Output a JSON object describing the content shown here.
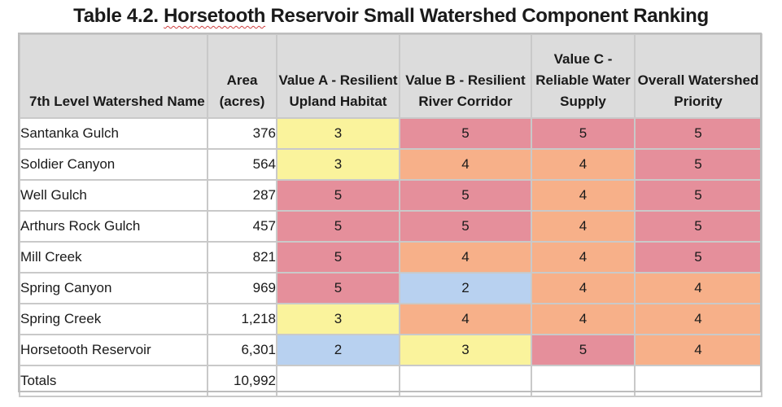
{
  "caption": {
    "prefix": "Table 4.2. ",
    "underlined": "Horsetooth",
    "suffix": " Reservoir Small Watershed Component Ranking"
  },
  "columns": [
    "7th Level Watershed Name",
    "Area (acres)",
    "Value A - Resilient Upland Habitat",
    "Value B - Resilient River Corridor",
    "Value C - Reliable Water Supply",
    "Overall Watershed Priority"
  ],
  "rows": [
    {
      "name": "Santanka Gulch",
      "area": "376",
      "a": "3",
      "b": "5",
      "c": "5",
      "overall": "5"
    },
    {
      "name": "Soldier Canyon",
      "area": "564",
      "a": "3",
      "b": "4",
      "c": "4",
      "overall": "5"
    },
    {
      "name": "Well Gulch",
      "area": "287",
      "a": "5",
      "b": "5",
      "c": "4",
      "overall": "5"
    },
    {
      "name": "Arthurs Rock Gulch",
      "area": "457",
      "a": "5",
      "b": "5",
      "c": "4",
      "overall": "5"
    },
    {
      "name": "Mill Creek",
      "area": "821",
      "a": "5",
      "b": "4",
      "c": "4",
      "overall": "5"
    },
    {
      "name": "Spring Canyon",
      "area": "969",
      "a": "5",
      "b": "2",
      "c": "4",
      "overall": "4"
    },
    {
      "name": "Spring Creek",
      "area": "1,218",
      "a": "3",
      "b": "4",
      "c": "4",
      "overall": "4"
    },
    {
      "name": "Horsetooth Reservoir",
      "area": "6,301",
      "a": "2",
      "b": "3",
      "c": "5",
      "overall": "4"
    }
  ],
  "totals": {
    "label": "Totals",
    "area": "10,992"
  },
  "colors": {
    "score_5": "#e58f9b",
    "score_4": "#f7b089",
    "score_3": "#faf39c",
    "score_2": "#b8d1f0",
    "header": "#dcdcdc"
  }
}
